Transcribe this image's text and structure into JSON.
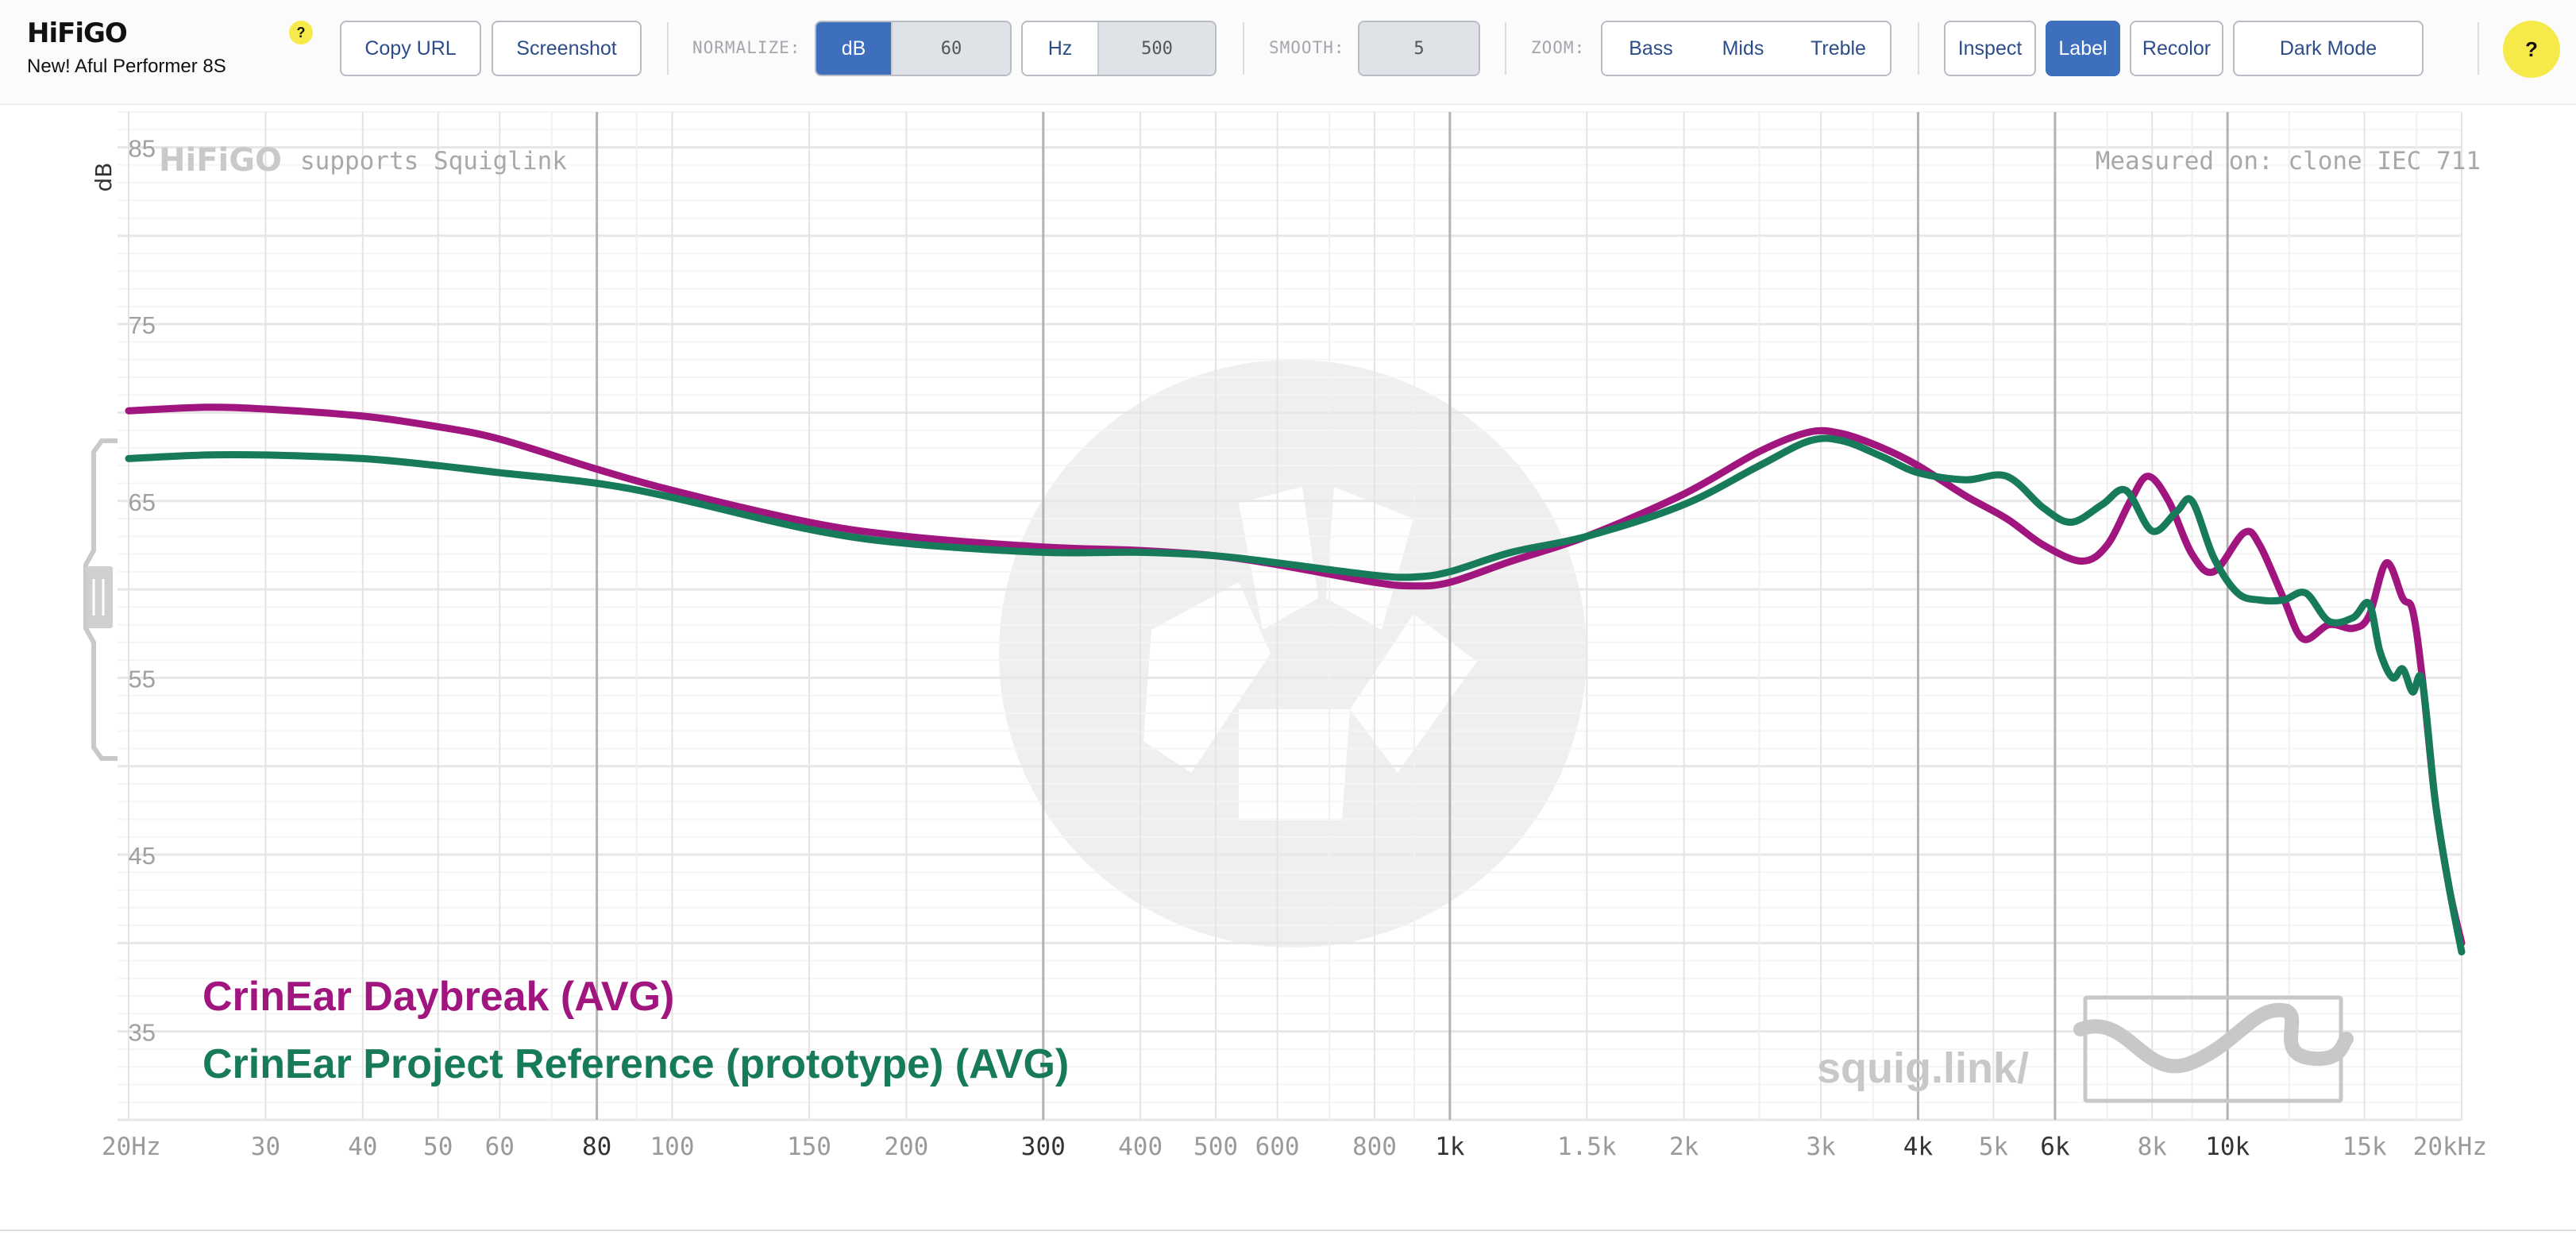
{
  "header": {
    "logo": "HiFiGO",
    "subtitle": "New! Aful Performer 8S",
    "help_small": "?",
    "help_big": "?"
  },
  "toolbar": {
    "copy_url": "Copy URL",
    "screenshot": "Screenshot",
    "normalize_label": "NORMALIZE:",
    "norm_db_unit": "dB",
    "norm_db_value": "60",
    "norm_hz_unit": "Hz",
    "norm_hz_value": "500",
    "smooth_label": "SMOOTH:",
    "smooth_value": "5",
    "zoom_label": "ZOOM:",
    "zoom_bass": "Bass",
    "zoom_mids": "Mids",
    "zoom_treble": "Treble",
    "inspect": "Inspect",
    "label": "Label",
    "recolor": "Recolor",
    "dark_mode": "Dark Mode"
  },
  "colors": {
    "accent": "#3e6fbd",
    "series_a": "#a0167e",
    "series_b": "#177a5a",
    "help": "#f6e94a"
  },
  "graph_text": {
    "watermark_brand": "HiFiGO",
    "watermark_supports": "supports Squiglink",
    "measured_on": "Measured on: clone IEC 711",
    "squiglink": "squig.link/"
  },
  "chart_data": {
    "type": "line",
    "ylabel": "dB",
    "x_scale": "log",
    "xlim": [
      20,
      20000
    ],
    "ylim": [
      30,
      87
    ],
    "grid": true,
    "legend_position": "bottom-left",
    "y_ticks": [
      85,
      75,
      65,
      55,
      45,
      35
    ],
    "x_ticks": [
      {
        "value": 20,
        "label": "20Hz",
        "major": false
      },
      {
        "value": 30,
        "label": "30",
        "major": false
      },
      {
        "value": 40,
        "label": "40",
        "major": false
      },
      {
        "value": 50,
        "label": "50",
        "major": false
      },
      {
        "value": 60,
        "label": "60",
        "major": false
      },
      {
        "value": 80,
        "label": "80",
        "major": true
      },
      {
        "value": 100,
        "label": "100",
        "major": false
      },
      {
        "value": 150,
        "label": "150",
        "major": false
      },
      {
        "value": 200,
        "label": "200",
        "major": false
      },
      {
        "value": 300,
        "label": "300",
        "major": true
      },
      {
        "value": 400,
        "label": "400",
        "major": false
      },
      {
        "value": 500,
        "label": "500",
        "major": false
      },
      {
        "value": 600,
        "label": "600",
        "major": false
      },
      {
        "value": 800,
        "label": "800",
        "major": false
      },
      {
        "value": 1000,
        "label": "1k",
        "major": true
      },
      {
        "value": 1500,
        "label": "1.5k",
        "major": false
      },
      {
        "value": 2000,
        "label": "2k",
        "major": false
      },
      {
        "value": 3000,
        "label": "3k",
        "major": false
      },
      {
        "value": 4000,
        "label": "4k",
        "major": true
      },
      {
        "value": 5000,
        "label": "5k",
        "major": false
      },
      {
        "value": 6000,
        "label": "6k",
        "major": true
      },
      {
        "value": 8000,
        "label": "8k",
        "major": false
      },
      {
        "value": 10000,
        "label": "10k",
        "major": true
      },
      {
        "value": 15000,
        "label": "15k",
        "major": false
      },
      {
        "value": 20000,
        "label": "20kHz",
        "major": false
      }
    ],
    "series": [
      {
        "name": "CrinEar Daybreak (AVG)",
        "color": "#a0167e",
        "points": [
          [
            20,
            70.1
          ],
          [
            25,
            70.3
          ],
          [
            30,
            70.2
          ],
          [
            40,
            69.8
          ],
          [
            50,
            69.2
          ],
          [
            60,
            68.5
          ],
          [
            80,
            66.8
          ],
          [
            100,
            65.6
          ],
          [
            150,
            63.8
          ],
          [
            200,
            63.0
          ],
          [
            300,
            62.4
          ],
          [
            400,
            62.2
          ],
          [
            500,
            61.9
          ],
          [
            600,
            61.4
          ],
          [
            800,
            60.4
          ],
          [
            900,
            60.2
          ],
          [
            1000,
            60.4
          ],
          [
            1200,
            61.6
          ],
          [
            1500,
            63.0
          ],
          [
            2000,
            65.4
          ],
          [
            2500,
            67.8
          ],
          [
            2900,
            68.9
          ],
          [
            3200,
            68.8
          ],
          [
            3600,
            68.0
          ],
          [
            4000,
            67.0
          ],
          [
            4600,
            65.3
          ],
          [
            5200,
            64.0
          ],
          [
            5800,
            62.5
          ],
          [
            6500,
            61.6
          ],
          [
            7000,
            62.5
          ],
          [
            7500,
            65.0
          ],
          [
            7900,
            66.4
          ],
          [
            8400,
            65.0
          ],
          [
            9000,
            62.0
          ],
          [
            9600,
            61.0
          ],
          [
            10500,
            63.2
          ],
          [
            11000,
            62.5
          ],
          [
            11800,
            59.5
          ],
          [
            12500,
            57.2
          ],
          [
            13500,
            58.0
          ],
          [
            14500,
            57.8
          ],
          [
            15200,
            58.5
          ],
          [
            16000,
            61.5
          ],
          [
            16800,
            59.5
          ],
          [
            17300,
            58.8
          ],
          [
            17800,
            55.0
          ],
          [
            18500,
            48.0
          ],
          [
            19300,
            43.0
          ],
          [
            20000,
            40.0
          ]
        ]
      },
      {
        "name": "CrinEar Project Reference (prototype) (AVG)",
        "color": "#177a5a",
        "points": [
          [
            20,
            67.4
          ],
          [
            25,
            67.6
          ],
          [
            30,
            67.6
          ],
          [
            40,
            67.4
          ],
          [
            50,
            67.0
          ],
          [
            60,
            66.6
          ],
          [
            80,
            66.0
          ],
          [
            100,
            65.2
          ],
          [
            150,
            63.4
          ],
          [
            200,
            62.6
          ],
          [
            300,
            62.1
          ],
          [
            400,
            62.1
          ],
          [
            500,
            61.9
          ],
          [
            600,
            61.5
          ],
          [
            800,
            60.8
          ],
          [
            900,
            60.7
          ],
          [
            1000,
            61.0
          ],
          [
            1200,
            62.1
          ],
          [
            1500,
            63.0
          ],
          [
            2000,
            64.8
          ],
          [
            2500,
            67.0
          ],
          [
            2900,
            68.4
          ],
          [
            3200,
            68.4
          ],
          [
            3600,
            67.5
          ],
          [
            4000,
            66.6
          ],
          [
            4600,
            66.2
          ],
          [
            5200,
            66.4
          ],
          [
            5800,
            64.6
          ],
          [
            6300,
            63.8
          ],
          [
            6900,
            64.8
          ],
          [
            7400,
            65.6
          ],
          [
            8000,
            63.3
          ],
          [
            8600,
            64.4
          ],
          [
            9000,
            65.0
          ],
          [
            9600,
            61.8
          ],
          [
            10300,
            59.8
          ],
          [
            11000,
            59.4
          ],
          [
            11800,
            59.4
          ],
          [
            12600,
            59.8
          ],
          [
            13500,
            58.2
          ],
          [
            14500,
            58.4
          ],
          [
            15200,
            59.2
          ],
          [
            15700,
            56.5
          ],
          [
            16300,
            55.0
          ],
          [
            16800,
            55.5
          ],
          [
            17300,
            54.2
          ],
          [
            17800,
            54.8
          ],
          [
            18500,
            48.0
          ],
          [
            19300,
            43.0
          ],
          [
            20000,
            39.5
          ]
        ]
      }
    ]
  }
}
